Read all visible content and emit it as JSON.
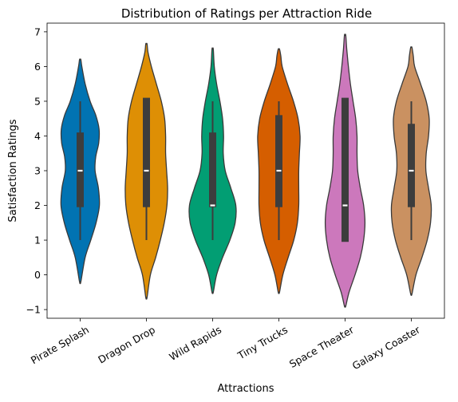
{
  "chart_data": {
    "type": "violin",
    "title": "Distribution of Ratings per Attraction Ride",
    "xlabel": "Attractions",
    "ylabel": "Satisfaction Ratings",
    "ylim": [
      -1.25,
      7.25
    ],
    "yticks": [
      -1,
      0,
      1,
      2,
      3,
      4,
      5,
      6,
      7
    ],
    "ytick_labels": [
      "−1",
      "0",
      "1",
      "2",
      "3",
      "4",
      "5",
      "6",
      "7"
    ],
    "grid": false,
    "legend": "none",
    "categories": [
      "Pirate Splash",
      "Dragon Drop",
      "Wild Rapids",
      "Tiny Trucks",
      "Space Theater",
      "Galaxy Coaster"
    ],
    "series": [
      {
        "color": "#0173b2",
        "violin_range": [
          -0.2,
          6.2
        ],
        "density": [
          [
            -0.2,
            0.02
          ],
          [
            0.5,
            0.15
          ],
          [
            1.0,
            0.32
          ],
          [
            1.5,
            0.48
          ],
          [
            2.0,
            0.58
          ],
          [
            2.5,
            0.55
          ],
          [
            3.0,
            0.45
          ],
          [
            3.4,
            0.47
          ],
          [
            3.8,
            0.56
          ],
          [
            4.2,
            0.57
          ],
          [
            4.6,
            0.47
          ],
          [
            5.0,
            0.3
          ],
          [
            5.5,
            0.15
          ],
          [
            6.0,
            0.05
          ],
          [
            6.2,
            0.02
          ]
        ],
        "whisker": [
          1,
          5
        ],
        "quartiles": [
          1.95,
          4.1
        ],
        "median": 3
      },
      {
        "color": "#de8f05",
        "violin_range": [
          -0.65,
          6.65
        ],
        "density": [
          [
            -0.65,
            0.02
          ],
          [
            0.0,
            0.12
          ],
          [
            0.5,
            0.28
          ],
          [
            1.0,
            0.42
          ],
          [
            1.5,
            0.54
          ],
          [
            2.0,
            0.62
          ],
          [
            2.5,
            0.64
          ],
          [
            3.0,
            0.61
          ],
          [
            3.5,
            0.58
          ],
          [
            4.0,
            0.58
          ],
          [
            4.5,
            0.55
          ],
          [
            5.0,
            0.45
          ],
          [
            5.5,
            0.3
          ],
          [
            6.0,
            0.15
          ],
          [
            6.4,
            0.05
          ],
          [
            6.65,
            0.02
          ]
        ],
        "whisker": [
          1,
          5
        ],
        "quartiles": [
          1.95,
          5.1
        ],
        "median": 3
      },
      {
        "color": "#029e73",
        "violin_range": [
          -0.5,
          6.5
        ],
        "density": [
          [
            -0.5,
            0.02
          ],
          [
            0.0,
            0.12
          ],
          [
            0.5,
            0.3
          ],
          [
            1.0,
            0.52
          ],
          [
            1.5,
            0.68
          ],
          [
            2.0,
            0.7
          ],
          [
            2.5,
            0.55
          ],
          [
            3.0,
            0.38
          ],
          [
            3.5,
            0.32
          ],
          [
            4.0,
            0.33
          ],
          [
            4.5,
            0.3
          ],
          [
            5.0,
            0.22
          ],
          [
            5.5,
            0.12
          ],
          [
            6.0,
            0.05
          ],
          [
            6.5,
            0.02
          ]
        ],
        "whisker": [
          1,
          5
        ],
        "quartiles": [
          1.95,
          4.1
        ],
        "median": 2
      },
      {
        "color": "#d55e00",
        "violin_range": [
          -0.5,
          6.5
        ],
        "density": [
          [
            -0.5,
            0.02
          ],
          [
            0.0,
            0.12
          ],
          [
            0.5,
            0.28
          ],
          [
            1.0,
            0.45
          ],
          [
            1.5,
            0.56
          ],
          [
            2.0,
            0.6
          ],
          [
            2.5,
            0.6
          ],
          [
            3.0,
            0.6
          ],
          [
            3.5,
            0.62
          ],
          [
            4.0,
            0.64
          ],
          [
            4.5,
            0.58
          ],
          [
            5.0,
            0.44
          ],
          [
            5.5,
            0.26
          ],
          [
            6.0,
            0.1
          ],
          [
            6.3,
            0.06
          ],
          [
            6.5,
            0.02
          ]
        ],
        "whisker": [
          1,
          5
        ],
        "quartiles": [
          1.95,
          4.6
        ],
        "median": 3
      },
      {
        "color": "#cc78bc",
        "violin_range": [
          -0.9,
          6.9
        ],
        "density": [
          [
            -0.9,
            0.02
          ],
          [
            -0.5,
            0.12
          ],
          [
            0.0,
            0.3
          ],
          [
            0.5,
            0.46
          ],
          [
            1.0,
            0.56
          ],
          [
            1.5,
            0.6
          ],
          [
            2.0,
            0.56
          ],
          [
            2.5,
            0.46
          ],
          [
            3.0,
            0.38
          ],
          [
            3.5,
            0.36
          ],
          [
            4.0,
            0.36
          ],
          [
            4.5,
            0.32
          ],
          [
            5.0,
            0.24
          ],
          [
            5.5,
            0.16
          ],
          [
            6.0,
            0.1
          ],
          [
            6.5,
            0.05
          ],
          [
            6.9,
            0.02
          ]
        ],
        "whisker": [
          1,
          5
        ],
        "quartiles": [
          0.95,
          5.1
        ],
        "median": 2
      },
      {
        "color": "#ca9161",
        "violin_range": [
          -0.55,
          6.55
        ],
        "density": [
          [
            -0.55,
            0.02
          ],
          [
            0.0,
            0.14
          ],
          [
            0.5,
            0.32
          ],
          [
            1.0,
            0.48
          ],
          [
            1.5,
            0.58
          ],
          [
            2.0,
            0.6
          ],
          [
            2.5,
            0.52
          ],
          [
            3.0,
            0.44
          ],
          [
            3.5,
            0.45
          ],
          [
            4.0,
            0.52
          ],
          [
            4.5,
            0.54
          ],
          [
            5.0,
            0.45
          ],
          [
            5.5,
            0.28
          ],
          [
            6.0,
            0.1
          ],
          [
            6.3,
            0.06
          ],
          [
            6.55,
            0.02
          ]
        ],
        "whisker": [
          1,
          5
        ],
        "quartiles": [
          1.95,
          4.35
        ],
        "median": 3
      }
    ]
  }
}
